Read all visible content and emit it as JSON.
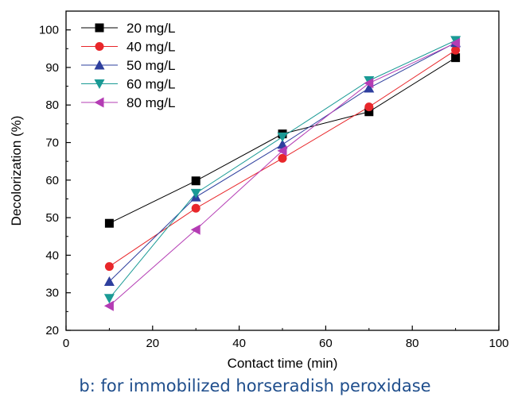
{
  "caption": "b: for immobilized horseradish peroxidase",
  "chart_data": {
    "type": "line",
    "title": "",
    "xlabel": "Contact time (min)",
    "ylabel": "Decolorization (%)",
    "xlim": [
      0,
      100
    ],
    "ylim": [
      20,
      105
    ],
    "xticks": [
      0,
      20,
      40,
      60,
      80,
      100
    ],
    "yticks": [
      20,
      30,
      40,
      50,
      60,
      70,
      80,
      90,
      100
    ],
    "grid": false,
    "legend_position": "top-left",
    "x": [
      10,
      30,
      50,
      70,
      90
    ],
    "series": [
      {
        "name": "20 mg/L",
        "marker": "square",
        "color": "#000000",
        "values": [
          48.5,
          59.8,
          72.3,
          78.2,
          92.6
        ]
      },
      {
        "name": "40 mg/L",
        "marker": "circle",
        "color": "#e8262a",
        "values": [
          37.0,
          52.5,
          65.8,
          79.5,
          94.6
        ]
      },
      {
        "name": "50 mg/L",
        "marker": "triangle-up",
        "color": "#2e3f9e",
        "values": [
          33.0,
          55.5,
          69.5,
          84.5,
          96.6
        ]
      },
      {
        "name": "60 mg/L",
        "marker": "triangle-down",
        "color": "#1a9a95",
        "values": [
          28.5,
          56.5,
          71.5,
          86.5,
          97.2
        ]
      },
      {
        "name": "80 mg/L",
        "marker": "triangle-left",
        "color": "#b43cb4",
        "values": [
          26.5,
          46.8,
          67.8,
          85.8,
          96.5
        ]
      }
    ]
  }
}
